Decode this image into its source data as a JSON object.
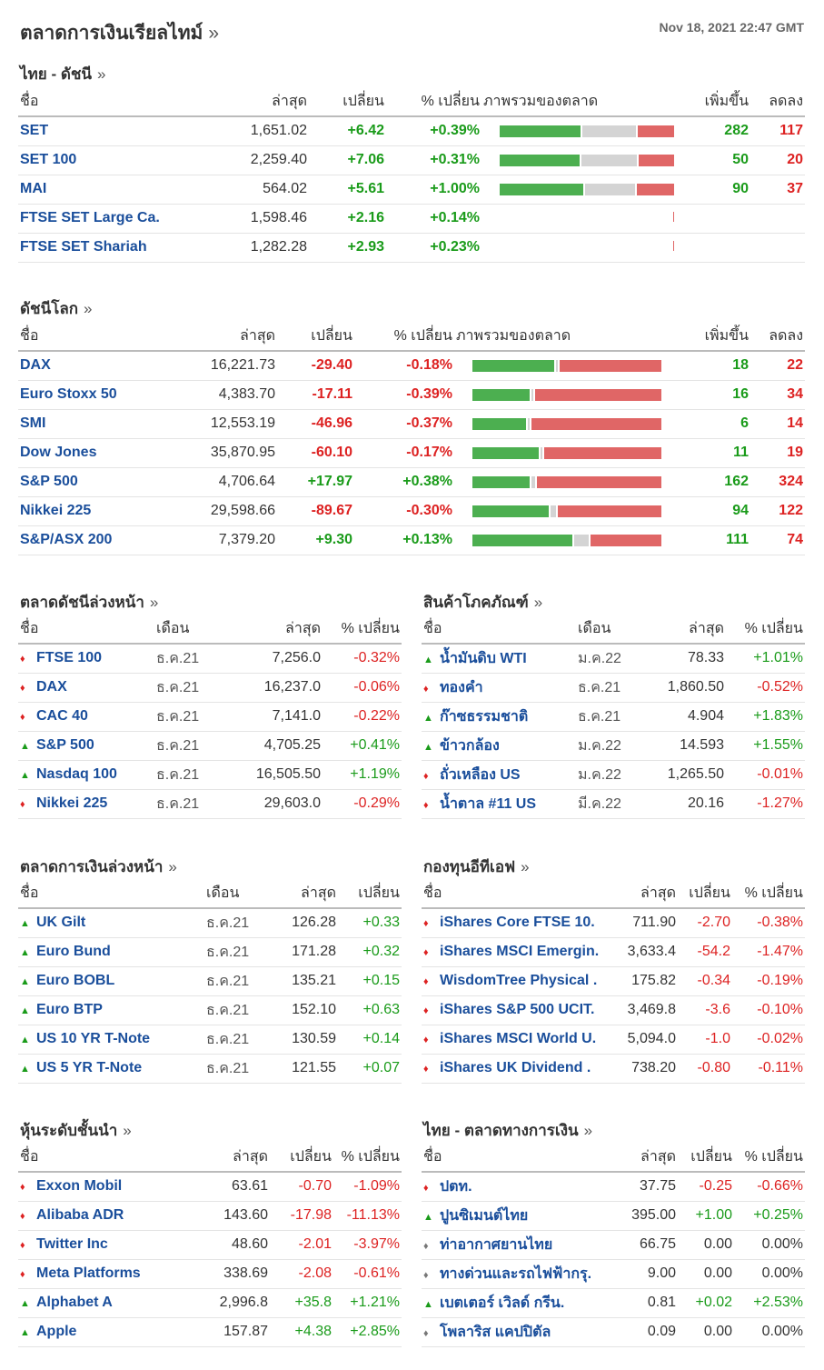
{
  "page": {
    "title": "ตลาดการเงินเรียลไทม์",
    "more": "»",
    "timestamp": "Nov 18, 2021 22:47 GMT"
  },
  "thai_index": {
    "title": "ไทย - ดัชนี",
    "more": "»",
    "headers": [
      "ชื่อ",
      "ล่าสุด",
      "เปลี่ยน",
      "% เปลี่ยน",
      "ภาพรวมของตลาด",
      "เพิ่มขึ้น",
      "ลดลง"
    ],
    "rows": [
      {
        "name": "SET",
        "last": "1,651.02",
        "chg": "+6.42",
        "pct": "+0.39%",
        "adv": "282",
        "dec": "117",
        "bar": [
          0.47,
          0.31,
          0.21
        ]
      },
      {
        "name": "SET 100",
        "last": "2,259.40",
        "chg": "+7.06",
        "pct": "+0.31%",
        "adv": "50",
        "dec": "20",
        "bar": [
          0.47,
          0.32,
          0.21
        ]
      },
      {
        "name": "MAI",
        "last": "564.02",
        "chg": "+5.61",
        "pct": "+1.00%",
        "adv": "90",
        "dec": "37",
        "bar": [
          0.49,
          0.29,
          0.22
        ]
      },
      {
        "name": "FTSE SET Large Ca.",
        "last": "1,598.46",
        "chg": "+2.16",
        "pct": "+0.14%",
        "adv": "",
        "dec": "",
        "bar": null
      },
      {
        "name": "FTSE SET Shariah",
        "last": "1,282.28",
        "chg": "+2.93",
        "pct": "+0.23%",
        "adv": "",
        "dec": "",
        "bar": null
      }
    ]
  },
  "world_index": {
    "title": "ดัชนีโลก",
    "more": "»",
    "headers": [
      "ชื่อ",
      "ล่าสุด",
      "เปลี่ยน",
      "% เปลี่ยน",
      "ภาพรวมของตลาด",
      "เพิ่มขึ้น",
      "ลดลง"
    ],
    "rows": [
      {
        "name": "DAX",
        "last": "16,221.73",
        "chg": "-29.40",
        "pct": "-0.18%",
        "adv": "18",
        "dec": "22",
        "bar": [
          0.44,
          0.01,
          0.55
        ]
      },
      {
        "name": "Euro Stoxx 50",
        "last": "4,383.70",
        "chg": "-17.11",
        "pct": "-0.39%",
        "adv": "16",
        "dec": "34",
        "bar": [
          0.31,
          0.01,
          0.68
        ]
      },
      {
        "name": "SMI",
        "last": "12,553.19",
        "chg": "-46.96",
        "pct": "-0.37%",
        "adv": "6",
        "dec": "14",
        "bar": [
          0.29,
          0.01,
          0.7
        ]
      },
      {
        "name": "Dow Jones",
        "last": "35,870.95",
        "chg": "-60.10",
        "pct": "-0.17%",
        "adv": "11",
        "dec": "19",
        "bar": [
          0.36,
          0.01,
          0.63
        ]
      },
      {
        "name": "S&P 500",
        "last": "4,706.64",
        "chg": "+17.97",
        "pct": "+0.38%",
        "adv": "162",
        "dec": "324",
        "bar": [
          0.31,
          0.02,
          0.67
        ]
      },
      {
        "name": "Nikkei 225",
        "last": "29,598.66",
        "chg": "-89.67",
        "pct": "-0.30%",
        "adv": "94",
        "dec": "122",
        "bar": [
          0.41,
          0.03,
          0.56
        ]
      },
      {
        "name": "S&P/ASX 200",
        "last": "7,379.20",
        "chg": "+9.30",
        "pct": "+0.13%",
        "adv": "111",
        "dec": "74",
        "bar": [
          0.54,
          0.08,
          0.38
        ]
      }
    ]
  },
  "index_futures": {
    "title": "ตลาดดัชนีล่วงหน้า",
    "more": "»",
    "headers": [
      "ชื่อ",
      "เดือน",
      "ล่าสุด",
      "% เปลี่ยน"
    ],
    "rows": [
      {
        "name": "FTSE 100",
        "month": "ธ.ค.21",
        "last": "7,256.0",
        "pct": "-0.32%",
        "dir": "down"
      },
      {
        "name": "DAX",
        "month": "ธ.ค.21",
        "last": "16,237.0",
        "pct": "-0.06%",
        "dir": "down"
      },
      {
        "name": "CAC 40",
        "month": "ธ.ค.21",
        "last": "7,141.0",
        "pct": "-0.22%",
        "dir": "down"
      },
      {
        "name": "S&P 500",
        "month": "ธ.ค.21",
        "last": "4,705.25",
        "pct": "+0.41%",
        "dir": "up"
      },
      {
        "name": "Nasdaq 100",
        "month": "ธ.ค.21",
        "last": "16,505.50",
        "pct": "+1.19%",
        "dir": "up"
      },
      {
        "name": "Nikkei 225",
        "month": "ธ.ค.21",
        "last": "29,603.0",
        "pct": "-0.29%",
        "dir": "down"
      }
    ]
  },
  "commodities": {
    "title": "สินค้าโภคภัณฑ์",
    "more": "»",
    "headers": [
      "ชื่อ",
      "เดือน",
      "ล่าสุด",
      "% เปลี่ยน"
    ],
    "rows": [
      {
        "name": "น้ำมันดิบ WTI",
        "month": "ม.ค.22",
        "last": "78.33",
        "pct": "+1.01%",
        "dir": "up"
      },
      {
        "name": "ทองคำ",
        "month": "ธ.ค.21",
        "last": "1,860.50",
        "pct": "-0.52%",
        "dir": "down"
      },
      {
        "name": "ก๊าซธรรมชาติ",
        "month": "ธ.ค.21",
        "last": "4.904",
        "pct": "+1.83%",
        "dir": "up"
      },
      {
        "name": "ข้าวกล้อง",
        "month": "ม.ค.22",
        "last": "14.593",
        "pct": "+1.55%",
        "dir": "up"
      },
      {
        "name": "ถั่วเหลือง US",
        "month": "ม.ค.22",
        "last": "1,265.50",
        "pct": "-0.01%",
        "dir": "down"
      },
      {
        "name": "น้ำตาล #11 US",
        "month": "มี.ค.22",
        "last": "20.16",
        "pct": "-1.27%",
        "dir": "down"
      }
    ]
  },
  "bond_futures": {
    "title": "ตลาดการเงินล่วงหน้า",
    "more": "»",
    "headers": [
      "ชื่อ",
      "เดือน",
      "ล่าสุด",
      "เปลี่ยน"
    ],
    "rows": [
      {
        "name": "UK Gilt",
        "month": "ธ.ค.21",
        "last": "126.28",
        "chg": "+0.33",
        "dir": "up"
      },
      {
        "name": "Euro Bund",
        "month": "ธ.ค.21",
        "last": "171.28",
        "chg": "+0.32",
        "dir": "up"
      },
      {
        "name": "Euro BOBL",
        "month": "ธ.ค.21",
        "last": "135.21",
        "chg": "+0.15",
        "dir": "up"
      },
      {
        "name": "Euro BTP",
        "month": "ธ.ค.21",
        "last": "152.10",
        "chg": "+0.63",
        "dir": "up"
      },
      {
        "name": "US 10 YR T-Note",
        "month": "ธ.ค.21",
        "last": "130.59",
        "chg": "+0.14",
        "dir": "up"
      },
      {
        "name": "US 5 YR T-Note",
        "month": "ธ.ค.21",
        "last": "121.55",
        "chg": "+0.07",
        "dir": "up"
      }
    ]
  },
  "etfs": {
    "title": "กองทุนอีทีเอฟ",
    "more": "»",
    "headers": [
      "ชื่อ",
      "ล่าสุด",
      "เปลี่ยน",
      "% เปลี่ยน"
    ],
    "rows": [
      {
        "name": "iShares Core FTSE 10.",
        "last": "711.90",
        "chg": "-2.70",
        "pct": "-0.38%",
        "dir": "down"
      },
      {
        "name": "iShares MSCI Emergin.",
        "last": "3,633.4",
        "chg": "-54.2",
        "pct": "-1.47%",
        "dir": "down"
      },
      {
        "name": "WisdomTree Physical .",
        "last": "175.82",
        "chg": "-0.34",
        "pct": "-0.19%",
        "dir": "down"
      },
      {
        "name": "iShares S&P 500 UCIT.",
        "last": "3,469.8",
        "chg": "-3.6",
        "pct": "-0.10%",
        "dir": "down"
      },
      {
        "name": "iShares MSCI World U.",
        "last": "5,094.0",
        "chg": "-1.0",
        "pct": "-0.02%",
        "dir": "down"
      },
      {
        "name": "iShares UK Dividend .",
        "last": "738.20",
        "chg": "-0.80",
        "pct": "-0.11%",
        "dir": "down"
      }
    ]
  },
  "top_stocks": {
    "title": "หุ้นระดับชั้นนำ",
    "more": "»",
    "headers": [
      "ชื่อ",
      "ล่าสุด",
      "เปลี่ยน",
      "% เปลี่ยน"
    ],
    "rows": [
      {
        "name": "Exxon Mobil",
        "last": "63.61",
        "chg": "-0.70",
        "pct": "-1.09%",
        "dir": "down"
      },
      {
        "name": "Alibaba ADR",
        "last": "143.60",
        "chg": "-17.98",
        "pct": "-11.13%",
        "dir": "down"
      },
      {
        "name": "Twitter Inc",
        "last": "48.60",
        "chg": "-2.01",
        "pct": "-3.97%",
        "dir": "down"
      },
      {
        "name": "Meta Platforms",
        "last": "338.69",
        "chg": "-2.08",
        "pct": "-0.61%",
        "dir": "down"
      },
      {
        "name": "Alphabet A",
        "last": "2,996.8",
        "chg": "+35.8",
        "pct": "+1.21%",
        "dir": "up"
      },
      {
        "name": "Apple",
        "last": "157.87",
        "chg": "+4.38",
        "pct": "+2.85%",
        "dir": "up"
      }
    ]
  },
  "thai_market": {
    "title": "ไทย - ตลาดทางการเงิน",
    "more": "»",
    "headers": [
      "ชื่อ",
      "ล่าสุด",
      "เปลี่ยน",
      "% เปลี่ยน"
    ],
    "rows": [
      {
        "name": "ปตท.",
        "last": "37.75",
        "chg": "-0.25",
        "pct": "-0.66%",
        "dir": "down"
      },
      {
        "name": "ปูนซิเมนต์ไทย",
        "last": "395.00",
        "chg": "+1.00",
        "pct": "+0.25%",
        "dir": "up"
      },
      {
        "name": "ท่าอากาศยานไทย",
        "last": "66.75",
        "chg": "0.00",
        "pct": "0.00%",
        "dir": "flat"
      },
      {
        "name": "ทางด่วนและรถไฟฟ้ากรุ.",
        "last": "9.00",
        "chg": "0.00",
        "pct": "0.00%",
        "dir": "flat"
      },
      {
        "name": "เบตเตอร์ เวิลด์ กรีน.",
        "last": "0.81",
        "chg": "+0.02",
        "pct": "+2.53%",
        "dir": "up"
      },
      {
        "name": "โพลาริส แคปปิตัล",
        "last": "0.09",
        "chg": "0.00",
        "pct": "0.00%",
        "dir": "flat"
      }
    ]
  },
  "icons": {
    "up": "▲",
    "down": "♦",
    "flat": "♦"
  },
  "colors": {
    "up": "#1a9b1a",
    "down": "#dd2222",
    "link": "#1a4e9b",
    "bar_up": "#4caf50",
    "bar_flat": "#d4d4d4",
    "bar_down": "#e06666"
  }
}
